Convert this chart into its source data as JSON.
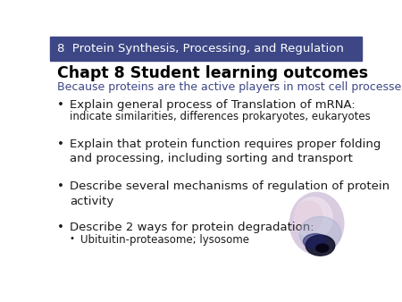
{
  "header_text": "8  Protein Synthesis, Processing, and Regulation",
  "header_bg": "#3d4785",
  "header_text_color": "#ffffff",
  "body_bg": "#ffffff",
  "title_text": "Chapt 8 Student learning outcomes",
  "title_color": "#000000",
  "subtitle_text": "Because proteins are the active players in most cell processes",
  "subtitle_color": "#3d4785",
  "bullet_items": [
    {
      "main": "Explain general process of Translation of mRNA:",
      "sub": "indicate similarities, differences prokaryotes, eukaryotes",
      "sub_bullet": false
    },
    {
      "main": "Explain that protein function requires proper folding\nand processing, including sorting and transport",
      "sub": "",
      "sub_bullet": false
    },
    {
      "main": "Describe several mechanisms of regulation of protein\nactivity",
      "sub": "",
      "sub_bullet": false
    },
    {
      "main": "Describe 2 ways for protein degradation:",
      "sub": "Ubituitin-proteasome; lysosome",
      "sub_bullet": true
    }
  ],
  "bullet_color": "#1a1a1a",
  "header_font_size": 9.5,
  "title_font_size": 12.5,
  "subtitle_font_size": 9.0,
  "body_font_size": 9.5,
  "sub_font_size": 8.5
}
